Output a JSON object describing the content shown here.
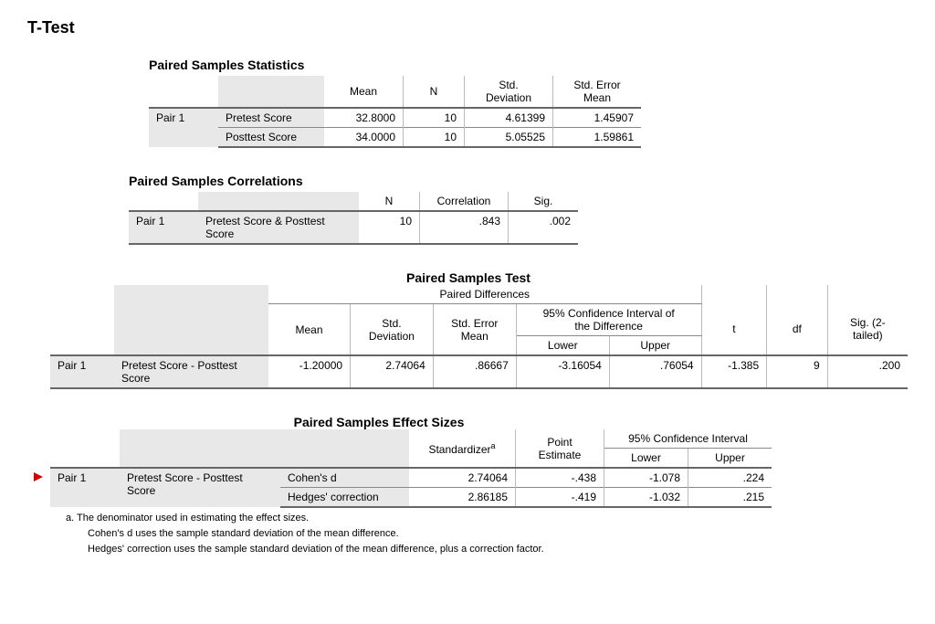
{
  "title": "T-Test",
  "colors": {
    "text": "#000000",
    "background": "#ffffff",
    "row_label_bg": "#e8e8e8",
    "border_dark": "#666666",
    "border_light": "#bbbbbb",
    "arrow": "#d40000"
  },
  "typography": {
    "font_family": "Arial",
    "body_fontsize_pt": 9,
    "title_fontsize_pt": 14,
    "section_title_fontsize_pt": 11
  },
  "table1": {
    "title": "Paired Samples Statistics",
    "columns": [
      "Mean",
      "N",
      "Std.\nDeviation",
      "Std. Error\nMean"
    ],
    "pair_label": "Pair 1",
    "rows": [
      {
        "label": "Pretest Score",
        "mean": "32.8000",
        "n": "10",
        "sd": "4.61399",
        "sem": "1.45907"
      },
      {
        "label": "Posttest Score",
        "mean": "34.0000",
        "n": "10",
        "sd": "5.05525",
        "sem": "1.59861"
      }
    ]
  },
  "table2": {
    "title": "Paired Samples Correlations",
    "columns": [
      "N",
      "Correlation",
      "Sig."
    ],
    "pair_label": "Pair 1",
    "row": {
      "label": "Pretest Score & Posttest\nScore",
      "n": "10",
      "corr": ".843",
      "sig": ".002"
    }
  },
  "table3": {
    "title": "Paired Samples Test",
    "super_header_top": "Paired Differences",
    "super_header_ci": "95% Confidence Interval of\nthe Difference",
    "columns": [
      "Mean",
      "Std.\nDeviation",
      "Std. Error\nMean",
      "Lower",
      "Upper",
      "t",
      "df",
      "Sig. (2-\ntailed)"
    ],
    "pair_label": "Pair 1",
    "row": {
      "label": "Pretest Score - Posttest\nScore",
      "mean": "-1.20000",
      "sd": "2.74064",
      "sem": ".86667",
      "lower": "-3.16054",
      "upper": ".76054",
      "t": "-1.385",
      "df": "9",
      "sig": ".200"
    }
  },
  "table4": {
    "title": "Paired Samples Effect Sizes",
    "col_standardizer": "Standardizer",
    "col_standardizer_sup": "a",
    "col_point": "Point\nEstimate",
    "super_header_ci": "95% Confidence Interval",
    "col_lower": "Lower",
    "col_upper": "Upper",
    "pair_label": "Pair 1",
    "row_label": "Pretest Score - Posttest\nScore",
    "rows": [
      {
        "method": "Cohen's d",
        "std": "2.74064",
        "point": "-.438",
        "lower": "-1.078",
        "upper": ".224"
      },
      {
        "method": "Hedges' correction",
        "std": "2.86185",
        "point": "-.419",
        "lower": "-1.032",
        "upper": ".215"
      }
    ],
    "footnote_a": "a. The denominator used in estimating the effect sizes.",
    "footnote_b": "Cohen's d uses the sample standard deviation of the mean difference.",
    "footnote_c": "Hedges' correction uses the sample standard deviation of the mean difference, plus a correction factor."
  }
}
